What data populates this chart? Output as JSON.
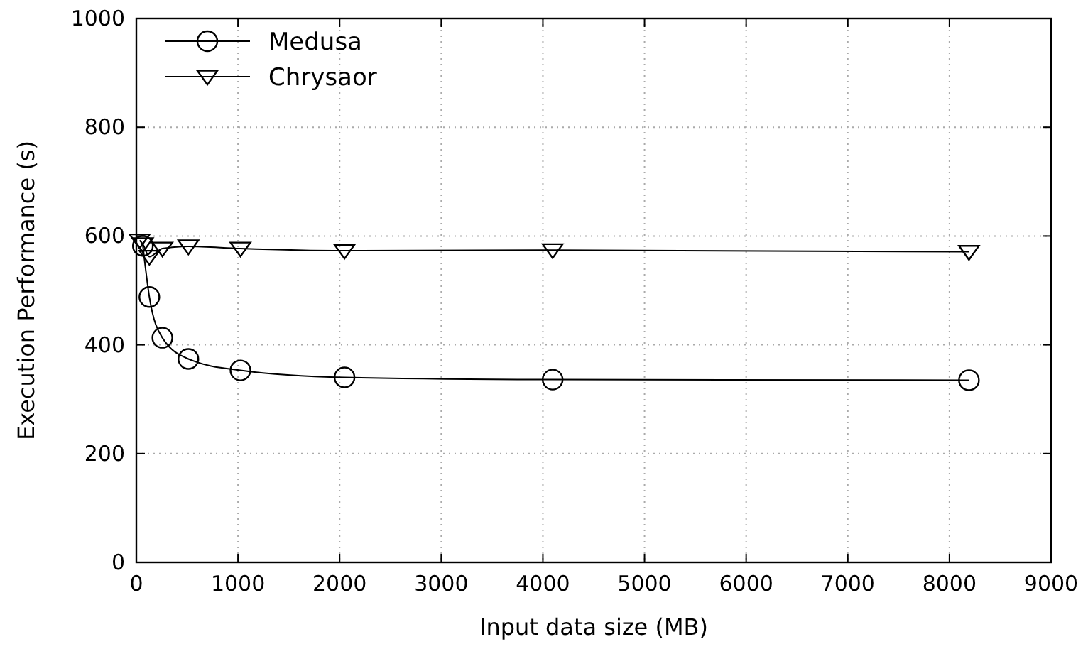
{
  "chart_data": {
    "type": "line",
    "xlabel": "Input data size (MB)",
    "ylabel": "Execution Performance (s)",
    "xlim": [
      0,
      9000
    ],
    "xticks": [
      0,
      1000,
      2000,
      3000,
      4000,
      5000,
      6000,
      7000,
      8000,
      9000
    ],
    "ylim": [
      0,
      1000
    ],
    "yticks": [
      0,
      200,
      400,
      600,
      800,
      1000
    ],
    "grid": true,
    "legend": "top left",
    "series": [
      {
        "name": "Medusa",
        "color": "#000000",
        "marker": "circle",
        "x": [
          64,
          128,
          256,
          512,
          1024,
          2048,
          4096,
          8192
        ],
        "values": [
          582,
          488,
          413,
          374,
          353,
          340,
          336,
          335
        ]
      },
      {
        "name": "Chrysaor",
        "color": "#000000",
        "marker": "triangle",
        "x": [
          32,
          64,
          128,
          256,
          512,
          1024,
          2048,
          4096,
          8192
        ],
        "values": [
          592,
          585,
          562,
          577,
          581,
          577,
          573,
          574,
          571
        ]
      }
    ]
  }
}
